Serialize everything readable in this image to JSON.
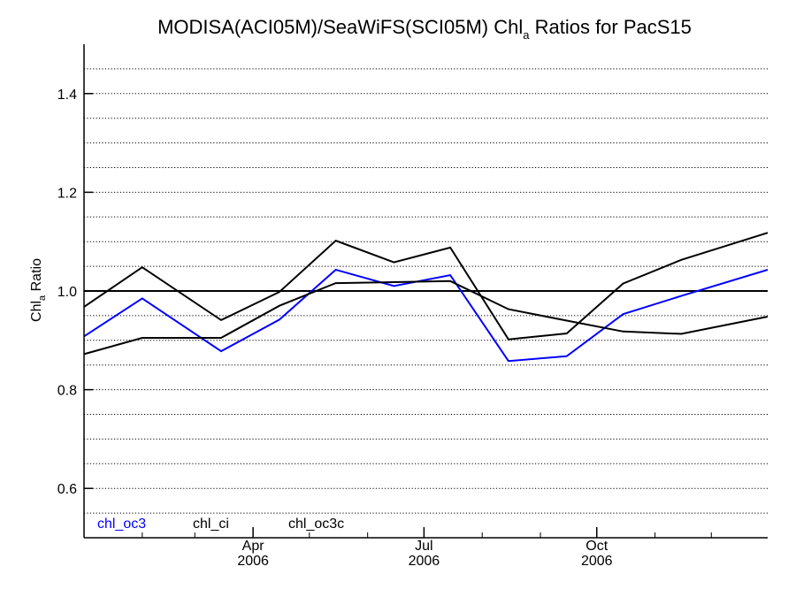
{
  "chart_data": {
    "type": "line",
    "title": {
      "prefix": "MODISA(ACI05M)/SeaWiFS(SCI05M)  Chl",
      "subscript": "a",
      "suffix": " Ratios for PacS15"
    },
    "ylabel": {
      "prefix": "Chl",
      "subscript": "a",
      "suffix": " Ratio"
    },
    "xlabel": "",
    "ylim": [
      0.5,
      1.5
    ],
    "yticks": [
      {
        "value": 0.6,
        "label": "0.6"
      },
      {
        "value": 0.8,
        "label": "0.8"
      },
      {
        "value": 1.0,
        "label": "1.0"
      },
      {
        "value": 1.2,
        "label": "1.2"
      },
      {
        "value": 1.4,
        "label": "1.4"
      }
    ],
    "y_dotted_grid_step": 0.05,
    "xlim": [
      "2006-01-01",
      "2006-12-31"
    ],
    "xticks": [
      {
        "date": "2006-04-01",
        "label": "Apr",
        "year": "2006"
      },
      {
        "date": "2006-07-01",
        "label": "Jul",
        "year": "2006"
      },
      {
        "date": "2006-10-01",
        "label": "Oct",
        "year": "2006"
      }
    ],
    "minor_x_ticks": [
      "2006-02-01",
      "2006-03-01",
      "2006-05-01",
      "2006-06-01",
      "2006-08-01",
      "2006-09-01",
      "2006-11-01",
      "2006-12-01"
    ],
    "reference_line": 1.0,
    "x": [
      "2006-01-01",
      "2006-02-01",
      "2006-03-15",
      "2006-04-15",
      "2006-05-15",
      "2006-06-15",
      "2006-07-15",
      "2006-08-15",
      "2006-09-15",
      "2006-10-15",
      "2006-11-15",
      "2006-12-31"
    ],
    "series": [
      {
        "name": "chl_oc3",
        "color": "#0000ff",
        "values": [
          0.908,
          0.985,
          0.878,
          0.942,
          1.043,
          1.01,
          1.032,
          0.858,
          0.868,
          0.953,
          0.99,
          1.043
        ]
      },
      {
        "name": "chl_ci",
        "color": "#000000",
        "values": [
          0.968,
          1.048,
          0.941,
          0.998,
          1.102,
          1.058,
          1.088,
          0.902,
          0.914,
          1.015,
          1.063,
          1.118
        ]
      },
      {
        "name": "chl_oc3c",
        "color": "#000000",
        "values": [
          0.872,
          0.905,
          0.905,
          0.97,
          1.016,
          1.018,
          1.02,
          0.963,
          0.94,
          0.918,
          0.913,
          0.948
        ]
      }
    ]
  }
}
